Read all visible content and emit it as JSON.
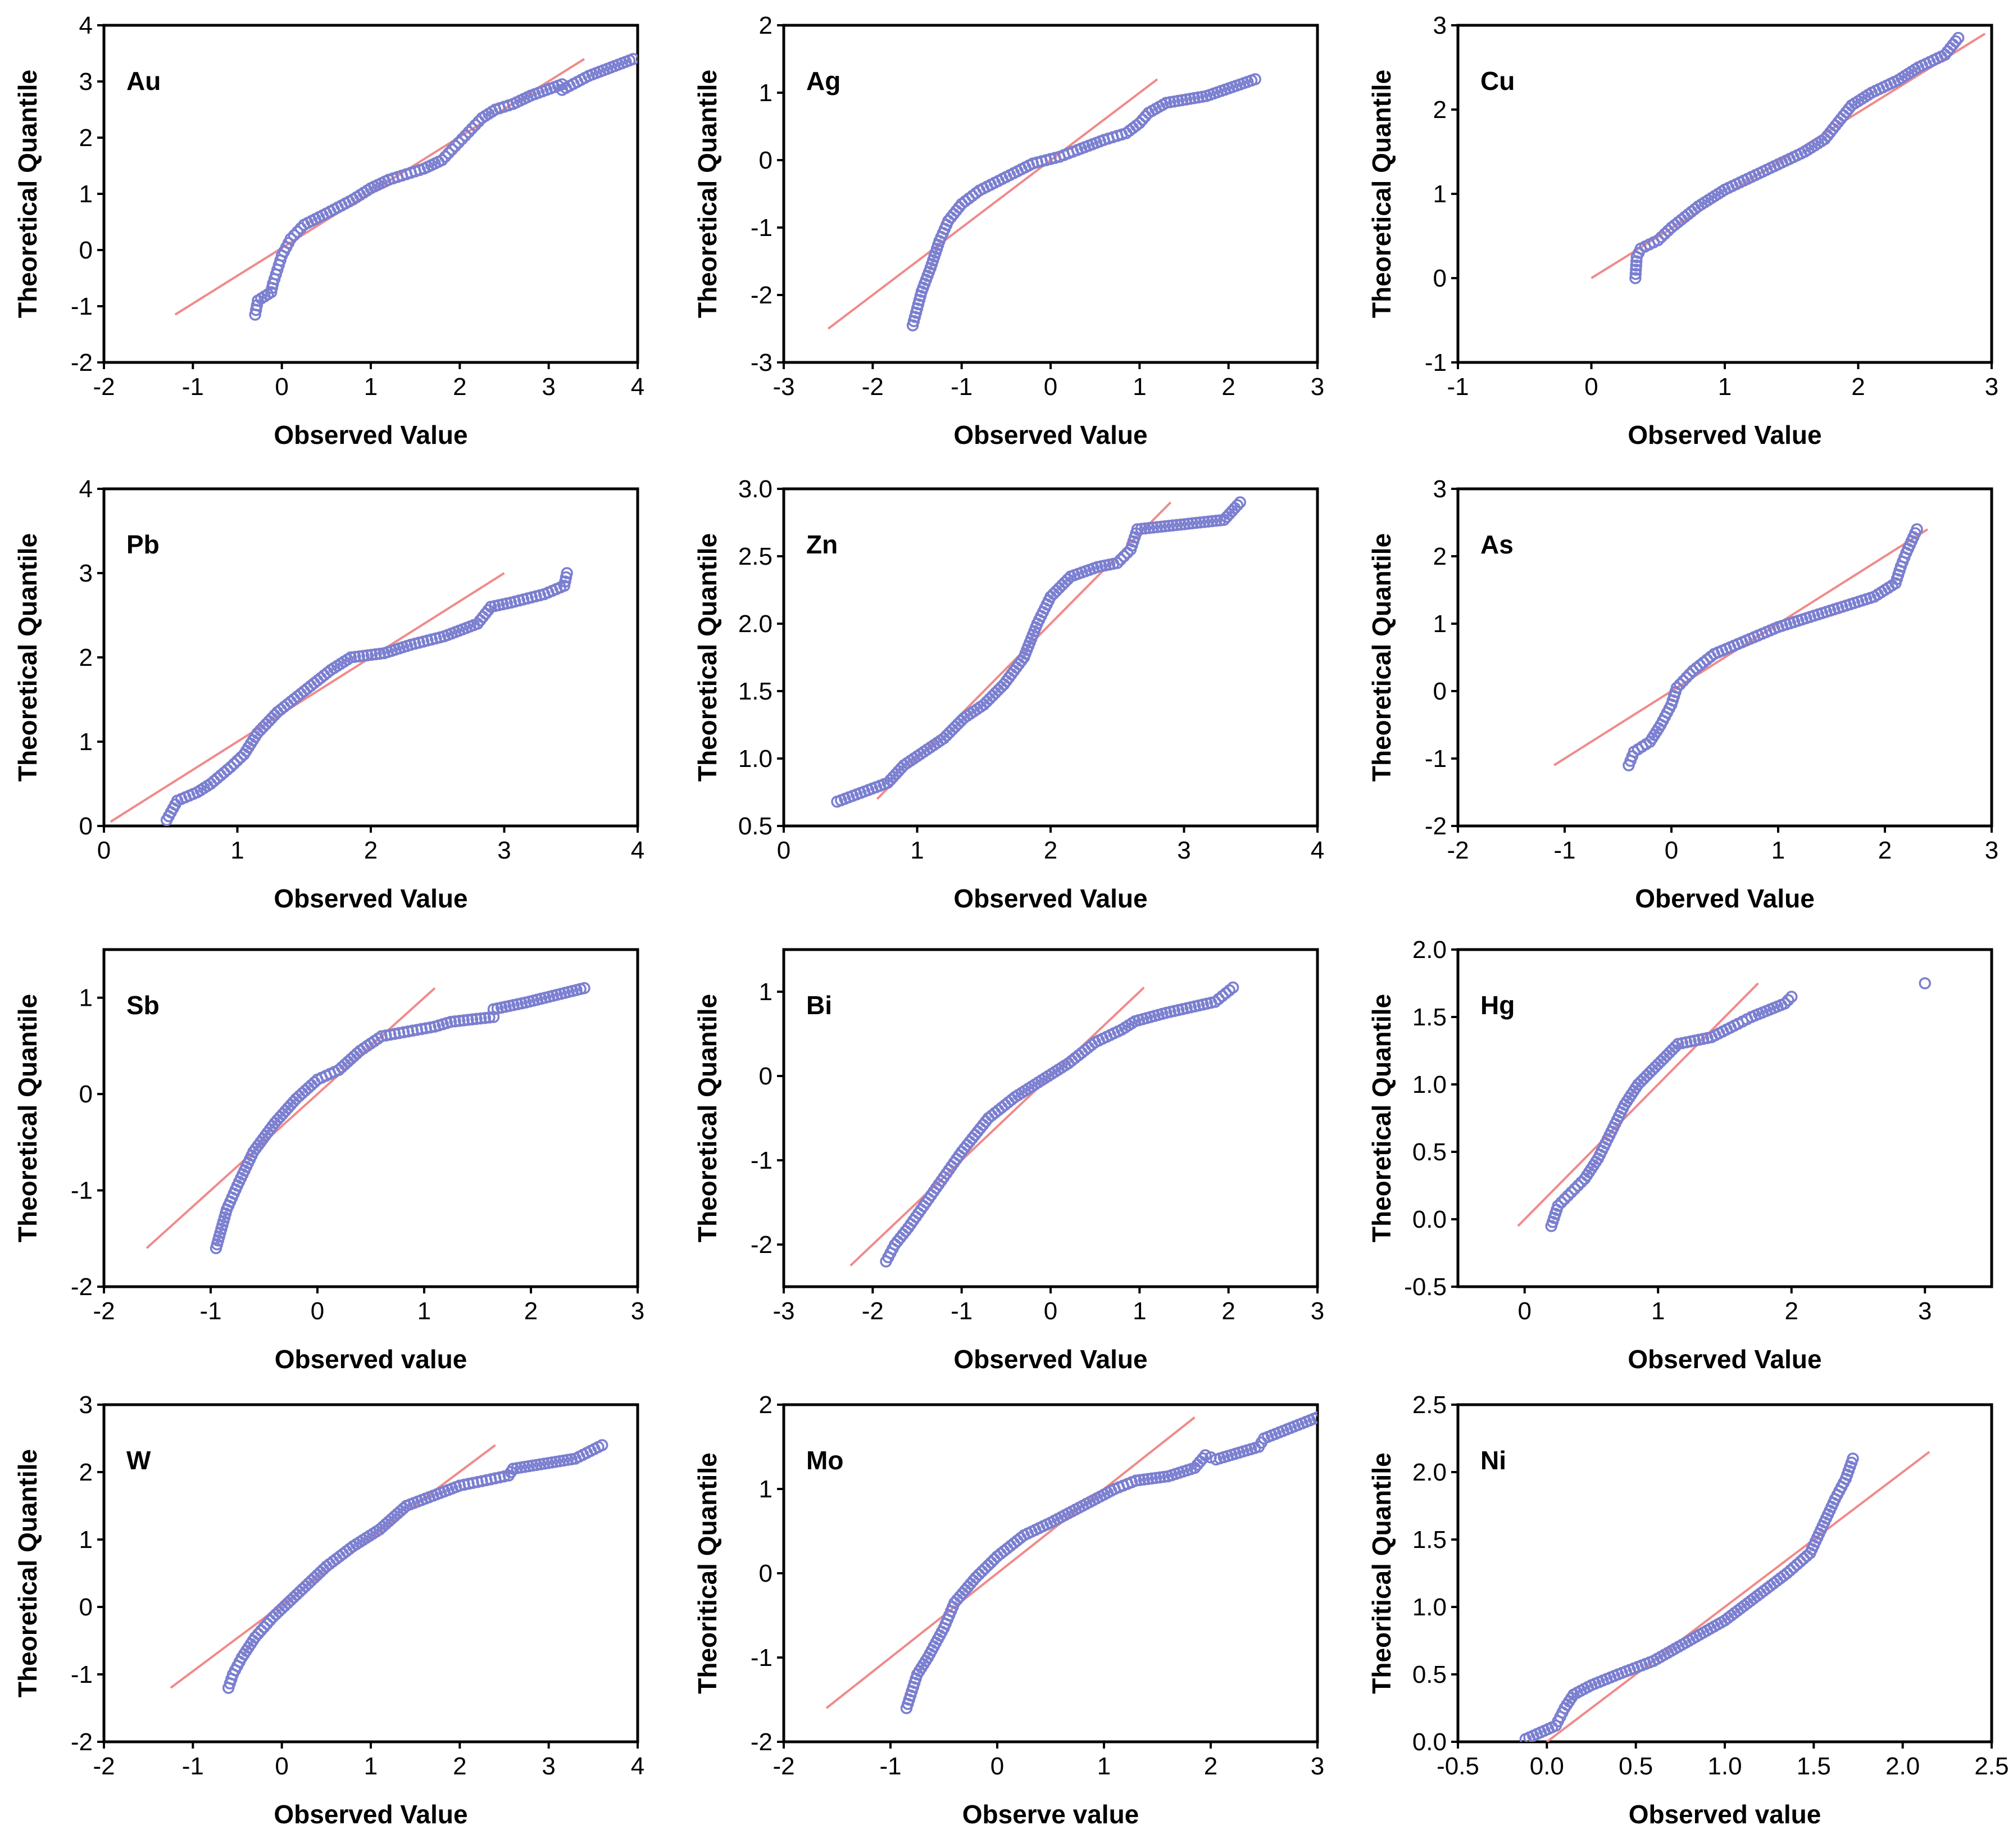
{
  "colors": {
    "point": "#7b7fd0",
    "reference_line": "#f08a8a",
    "frame": "#000000"
  },
  "chart_data": [
    {
      "type": "scatter",
      "title": "Au",
      "xlabel": "Observed Value",
      "ylabel": "Theoretical Quantile",
      "xlim": [
        -2,
        4
      ],
      "ylim": [
        -2,
        4
      ],
      "xticks": [
        -2,
        -1,
        0,
        1,
        2,
        3,
        4
      ],
      "yticks": [
        -2,
        -1,
        0,
        1,
        2,
        3,
        4
      ],
      "reference_line": [
        [
          -1.2,
          -1.15
        ],
        [
          3.4,
          3.4
        ]
      ],
      "points": [
        [
          -0.3,
          -1.15
        ],
        [
          -0.27,
          -0.9
        ],
        [
          -0.12,
          -0.75
        ],
        [
          -0.1,
          -0.6
        ],
        [
          -0.05,
          -0.35
        ],
        [
          0.0,
          -0.1
        ],
        [
          0.1,
          0.2
        ],
        [
          0.25,
          0.45
        ],
        [
          0.5,
          0.65
        ],
        [
          0.8,
          0.9
        ],
        [
          1.0,
          1.1
        ],
        [
          1.2,
          1.25
        ],
        [
          1.4,
          1.35
        ],
        [
          1.6,
          1.45
        ],
        [
          1.8,
          1.6
        ],
        [
          1.95,
          1.85
        ],
        [
          2.1,
          2.1
        ],
        [
          2.25,
          2.35
        ],
        [
          2.4,
          2.5
        ],
        [
          2.6,
          2.6
        ],
        [
          2.8,
          2.75
        ],
        [
          3.15,
          2.95
        ],
        [
          3.15,
          2.85
        ],
        [
          3.45,
          3.1
        ],
        [
          3.95,
          3.4
        ]
      ]
    },
    {
      "type": "scatter",
      "title": "Ag",
      "xlabel": "Observed Value",
      "ylabel": "Theoretical Quantile",
      "xlim": [
        -3,
        3
      ],
      "ylim": [
        -3,
        2
      ],
      "xticks": [
        -3,
        -2,
        -1,
        0,
        1,
        2,
        3
      ],
      "yticks": [
        -3,
        -2,
        -1,
        0,
        1,
        2
      ],
      "reference_line": [
        [
          -2.5,
          -2.5
        ],
        [
          1.2,
          1.2
        ]
      ],
      "points": [
        [
          -1.55,
          -2.45
        ],
        [
          -1.5,
          -2.2
        ],
        [
          -1.45,
          -1.95
        ],
        [
          -1.35,
          -1.6
        ],
        [
          -1.25,
          -1.2
        ],
        [
          -1.15,
          -0.9
        ],
        [
          -1.0,
          -0.65
        ],
        [
          -0.8,
          -0.45
        ],
        [
          -0.5,
          -0.25
        ],
        [
          -0.2,
          -0.05
        ],
        [
          0.1,
          0.05
        ],
        [
          0.3,
          0.15
        ],
        [
          0.6,
          0.3
        ],
        [
          0.85,
          0.4
        ],
        [
          1.0,
          0.55
        ],
        [
          1.1,
          0.7
        ],
        [
          1.3,
          0.85
        ],
        [
          1.75,
          0.95
        ],
        [
          2.3,
          1.2
        ]
      ]
    },
    {
      "type": "scatter",
      "title": "Cu",
      "xlabel": "Observed Value",
      "ylabel": "Theoretical Quantile",
      "xlim": [
        -1,
        3
      ],
      "ylim": [
        -1,
        3
      ],
      "xticks": [
        -1,
        0,
        1,
        2,
        3
      ],
      "yticks": [
        -1,
        0,
        1,
        2,
        3
      ],
      "reference_line": [
        [
          0.0,
          0.0
        ],
        [
          2.95,
          2.9
        ]
      ],
      "points": [
        [
          0.33,
          0.0
        ],
        [
          0.34,
          0.25
        ],
        [
          0.37,
          0.35
        ],
        [
          0.5,
          0.45
        ],
        [
          0.6,
          0.6
        ],
        [
          0.8,
          0.85
        ],
        [
          1.0,
          1.05
        ],
        [
          1.2,
          1.2
        ],
        [
          1.4,
          1.35
        ],
        [
          1.6,
          1.5
        ],
        [
          1.75,
          1.65
        ],
        [
          1.85,
          1.85
        ],
        [
          1.95,
          2.05
        ],
        [
          2.1,
          2.2
        ],
        [
          2.3,
          2.35
        ],
        [
          2.45,
          2.5
        ],
        [
          2.65,
          2.65
        ],
        [
          2.75,
          2.85
        ]
      ]
    },
    {
      "type": "scatter",
      "title": "Pb",
      "xlabel": "Observed Value",
      "ylabel": "Theoretical Quantile",
      "xlim": [
        0,
        4
      ],
      "ylim": [
        0,
        4
      ],
      "xticks": [
        0,
        1,
        2,
        3,
        4
      ],
      "yticks": [
        0,
        1,
        2,
        3,
        4
      ],
      "reference_line": [
        [
          0.05,
          0.05
        ],
        [
          3.0,
          3.0
        ]
      ],
      "points": [
        [
          0.47,
          0.07
        ],
        [
          0.55,
          0.3
        ],
        [
          0.7,
          0.4
        ],
        [
          0.8,
          0.5
        ],
        [
          0.95,
          0.7
        ],
        [
          1.05,
          0.85
        ],
        [
          1.15,
          1.1
        ],
        [
          1.3,
          1.35
        ],
        [
          1.5,
          1.6
        ],
        [
          1.7,
          1.85
        ],
        [
          1.85,
          2.0
        ],
        [
          2.1,
          2.05
        ],
        [
          2.3,
          2.15
        ],
        [
          2.55,
          2.25
        ],
        [
          2.8,
          2.4
        ],
        [
          2.9,
          2.6
        ],
        [
          3.05,
          2.65
        ],
        [
          3.3,
          2.75
        ],
        [
          3.45,
          2.85
        ],
        [
          3.47,
          3.0
        ]
      ]
    },
    {
      "type": "scatter",
      "title": "Zn",
      "xlabel": "Observed Value",
      "ylabel": "Theoretical Quantile",
      "xlim": [
        0,
        4
      ],
      "ylim": [
        0.5,
        3.0
      ],
      "xticks": [
        0,
        1,
        2,
        3,
        4
      ],
      "yticks": [
        0.5,
        1.0,
        1.5,
        2.0,
        2.5,
        3.0
      ],
      "reference_line": [
        [
          0.7,
          0.7
        ],
        [
          2.9,
          2.9
        ]
      ],
      "points": [
        [
          0.4,
          0.68
        ],
        [
          0.78,
          0.82
        ],
        [
          0.9,
          0.95
        ],
        [
          1.05,
          1.05
        ],
        [
          1.2,
          1.15
        ],
        [
          1.35,
          1.3
        ],
        [
          1.5,
          1.4
        ],
        [
          1.65,
          1.55
        ],
        [
          1.8,
          1.75
        ],
        [
          1.9,
          2.0
        ],
        [
          2.0,
          2.2
        ],
        [
          2.15,
          2.35
        ],
        [
          2.35,
          2.42
        ],
        [
          2.5,
          2.45
        ],
        [
          2.6,
          2.55
        ],
        [
          2.65,
          2.7
        ],
        [
          3.3,
          2.77
        ],
        [
          3.42,
          2.9
        ]
      ]
    },
    {
      "type": "scatter",
      "title": "As",
      "xlabel": "Oberved Value",
      "ylabel": "Theoretical Quantile",
      "xlim": [
        -2,
        3
      ],
      "ylim": [
        -2,
        3
      ],
      "xticks": [
        -2,
        -1,
        0,
        1,
        2,
        3
      ],
      "yticks": [
        -2,
        -1,
        0,
        1,
        2,
        3
      ],
      "reference_line": [
        [
          -1.1,
          -1.1
        ],
        [
          2.4,
          2.4
        ]
      ],
      "points": [
        [
          -0.4,
          -1.1
        ],
        [
          -0.35,
          -0.9
        ],
        [
          -0.2,
          -0.75
        ],
        [
          -0.1,
          -0.5
        ],
        [
          0.0,
          -0.2
        ],
        [
          0.05,
          0.05
        ],
        [
          0.2,
          0.3
        ],
        [
          0.4,
          0.55
        ],
        [
          0.7,
          0.75
        ],
        [
          1.0,
          0.95
        ],
        [
          1.3,
          1.1
        ],
        [
          1.6,
          1.25
        ],
        [
          1.9,
          1.4
        ],
        [
          2.1,
          1.6
        ],
        [
          2.15,
          1.85
        ],
        [
          2.2,
          2.05
        ],
        [
          2.3,
          2.4
        ]
      ]
    },
    {
      "type": "scatter",
      "title": "Sb",
      "xlabel": "Observed value",
      "ylabel": "Theoretical Quantile",
      "xlim": [
        -2,
        3
      ],
      "ylim": [
        -2,
        1.5
      ],
      "xticks": [
        -2,
        -1,
        0,
        1,
        2,
        3
      ],
      "yticks": [
        -2,
        -1,
        0,
        1
      ],
      "reference_line": [
        [
          -1.6,
          -1.6
        ],
        [
          1.1,
          1.1
        ]
      ],
      "points": [
        [
          -0.95,
          -1.6
        ],
        [
          -0.9,
          -1.4
        ],
        [
          -0.85,
          -1.2
        ],
        [
          -0.75,
          -0.95
        ],
        [
          -0.6,
          -0.6
        ],
        [
          -0.4,
          -0.3
        ],
        [
          -0.2,
          -0.05
        ],
        [
          0.0,
          0.15
        ],
        [
          0.2,
          0.25
        ],
        [
          0.4,
          0.45
        ],
        [
          0.6,
          0.6
        ],
        [
          0.85,
          0.65
        ],
        [
          1.1,
          0.7
        ],
        [
          1.25,
          0.75
        ],
        [
          1.65,
          0.8
        ],
        [
          1.65,
          0.88
        ],
        [
          1.95,
          0.95
        ],
        [
          2.5,
          1.1
        ]
      ]
    },
    {
      "type": "scatter",
      "title": "Bi",
      "xlabel": "Observed Value",
      "ylabel": "Theoretical Quantile",
      "xlim": [
        -3,
        3
      ],
      "ylim": [
        -2.5,
        1.5
      ],
      "xticks": [
        -3,
        -2,
        -1,
        0,
        1,
        2,
        3
      ],
      "yticks": [
        -2,
        -1,
        0,
        1
      ],
      "reference_line": [
        [
          -2.25,
          -2.25
        ],
        [
          1.05,
          1.05
        ]
      ],
      "points": [
        [
          -1.85,
          -2.2
        ],
        [
          -1.75,
          -2.0
        ],
        [
          -1.6,
          -1.8
        ],
        [
          -1.4,
          -1.5
        ],
        [
          -1.2,
          -1.2
        ],
        [
          -1.0,
          -0.9
        ],
        [
          -0.7,
          -0.5
        ],
        [
          -0.4,
          -0.25
        ],
        [
          -0.1,
          -0.05
        ],
        [
          0.2,
          0.15
        ],
        [
          0.5,
          0.4
        ],
        [
          0.8,
          0.55
        ],
        [
          0.95,
          0.65
        ],
        [
          1.3,
          0.75
        ],
        [
          1.85,
          0.88
        ],
        [
          2.05,
          1.05
        ]
      ]
    },
    {
      "type": "scatter",
      "title": "Hg",
      "xlabel": "Observed Value",
      "ylabel": "Theoretical Quantile",
      "xlim": [
        -0.5,
        3.5
      ],
      "ylim": [
        -0.5,
        2.0
      ],
      "xticks": [
        0,
        1,
        2,
        3
      ],
      "yticks": [
        -0.5,
        0.0,
        0.5,
        1.0,
        1.5,
        2.0
      ],
      "reference_line": [
        [
          -0.05,
          -0.05
        ],
        [
          1.75,
          1.75
        ]
      ],
      "points": [
        [
          0.2,
          -0.05
        ],
        [
          0.25,
          0.1
        ],
        [
          0.35,
          0.2
        ],
        [
          0.45,
          0.3
        ],
        [
          0.55,
          0.45
        ],
        [
          0.65,
          0.65
        ],
        [
          0.75,
          0.85
        ],
        [
          0.85,
          1.0
        ],
        [
          1.0,
          1.15
        ],
        [
          1.15,
          1.3
        ],
        [
          1.4,
          1.35
        ],
        [
          1.6,
          1.45
        ],
        [
          1.7,
          1.5
        ],
        [
          1.95,
          1.6
        ],
        [
          2.0,
          1.65
        ],
        [
          3.0,
          1.75
        ]
      ]
    },
    {
      "type": "scatter",
      "title": "W",
      "xlabel": "Observed Value",
      "ylabel": "Theoretical Quantile",
      "xlim": [
        -2,
        4
      ],
      "ylim": [
        -2,
        3
      ],
      "xticks": [
        -2,
        -1,
        0,
        1,
        2,
        3,
        4
      ],
      "yticks": [
        -2,
        -1,
        0,
        1,
        2,
        3
      ],
      "reference_line": [
        [
          -1.25,
          -1.2
        ],
        [
          2.4,
          2.4
        ]
      ],
      "points": [
        [
          -0.6,
          -1.2
        ],
        [
          -0.55,
          -1.0
        ],
        [
          -0.45,
          -0.75
        ],
        [
          -0.3,
          -0.45
        ],
        [
          -0.1,
          -0.15
        ],
        [
          0.1,
          0.1
        ],
        [
          0.3,
          0.35
        ],
        [
          0.5,
          0.6
        ],
        [
          0.8,
          0.9
        ],
        [
          1.1,
          1.15
        ],
        [
          1.4,
          1.5
        ],
        [
          1.7,
          1.65
        ],
        [
          2.0,
          1.8
        ],
        [
          2.3,
          1.88
        ],
        [
          2.55,
          1.95
        ],
        [
          2.6,
          2.05
        ],
        [
          3.3,
          2.2
        ],
        [
          3.6,
          2.4
        ]
      ]
    },
    {
      "type": "scatter",
      "title": "Mo",
      "xlabel": "Observe value",
      "ylabel": "Theoritical Quantile",
      "xlim": [
        -2,
        3
      ],
      "ylim": [
        -2,
        2
      ],
      "xticks": [
        -2,
        -1,
        0,
        1,
        2,
        3
      ],
      "yticks": [
        -2,
        -1,
        0,
        1,
        2
      ],
      "reference_line": [
        [
          -1.6,
          -1.6
        ],
        [
          1.85,
          1.85
        ]
      ],
      "points": [
        [
          -0.85,
          -1.6
        ],
        [
          -0.8,
          -1.4
        ],
        [
          -0.75,
          -1.2
        ],
        [
          -0.65,
          -1.0
        ],
        [
          -0.5,
          -0.65
        ],
        [
          -0.4,
          -0.35
        ],
        [
          -0.2,
          -0.05
        ],
        [
          0.0,
          0.2
        ],
        [
          0.25,
          0.45
        ],
        [
          0.5,
          0.6
        ],
        [
          0.8,
          0.8
        ],
        [
          1.1,
          1.0
        ],
        [
          1.3,
          1.1
        ],
        [
          1.6,
          1.15
        ],
        [
          1.85,
          1.25
        ],
        [
          1.95,
          1.4
        ],
        [
          2.05,
          1.35
        ],
        [
          2.45,
          1.5
        ],
        [
          2.5,
          1.6
        ],
        [
          3.0,
          1.85
        ]
      ]
    },
    {
      "type": "scatter",
      "title": "Ni",
      "xlabel": "Observed value",
      "ylabel": "Theoritical Quantile",
      "xlim": [
        -0.5,
        2.5
      ],
      "ylim": [
        0.0,
        2.5
      ],
      "xticks": [
        -0.5,
        0.0,
        0.5,
        1.0,
        1.5,
        2.0,
        2.5
      ],
      "yticks": [
        0.0,
        0.5,
        1.0,
        1.5,
        2.0,
        2.5
      ],
      "reference_line": [
        [
          0.0,
          0.0
        ],
        [
          2.15,
          2.15
        ]
      ],
      "points": [
        [
          -0.12,
          0.02
        ],
        [
          0.05,
          0.12
        ],
        [
          0.1,
          0.25
        ],
        [
          0.15,
          0.35
        ],
        [
          0.25,
          0.42
        ],
        [
          0.4,
          0.5
        ],
        [
          0.6,
          0.6
        ],
        [
          0.8,
          0.75
        ],
        [
          1.0,
          0.9
        ],
        [
          1.2,
          1.1
        ],
        [
          1.35,
          1.25
        ],
        [
          1.48,
          1.4
        ],
        [
          1.55,
          1.6
        ],
        [
          1.62,
          1.8
        ],
        [
          1.68,
          1.95
        ],
        [
          1.72,
          2.1
        ]
      ]
    }
  ]
}
